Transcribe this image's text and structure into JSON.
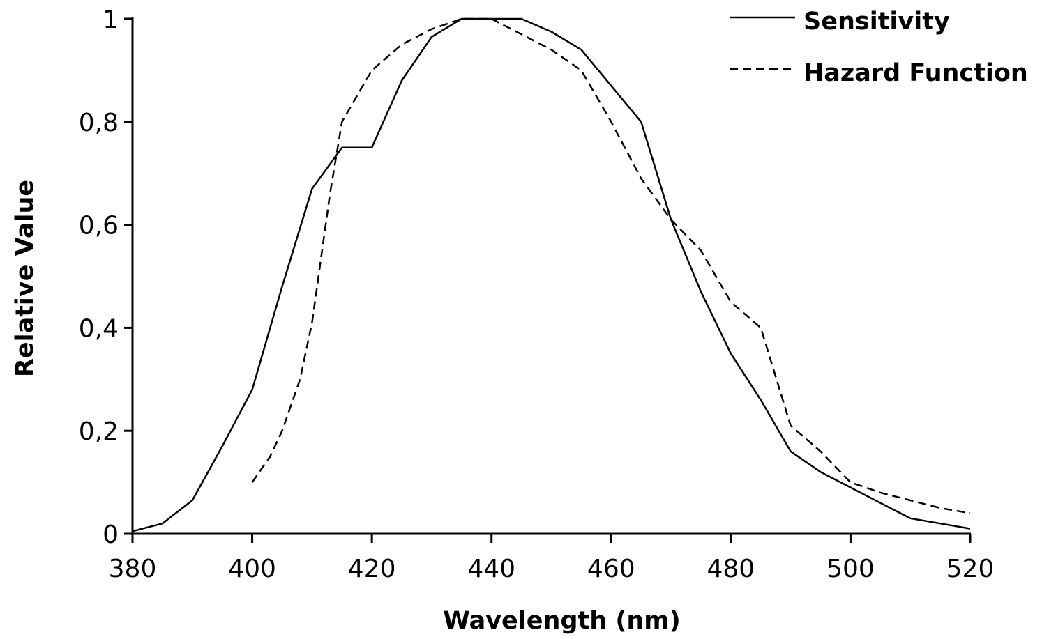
{
  "chart_data": {
    "type": "line",
    "xlabel": "Wavelength (nm)",
    "ylabel": "Relative Value",
    "xlim": [
      380,
      520
    ],
    "ylim": [
      0,
      1
    ],
    "x_ticks": [
      "380",
      "400",
      "420",
      "440",
      "460",
      "480",
      "500",
      "520"
    ],
    "y_ticks": [
      "0",
      "0,2",
      "0,4",
      "0,6",
      "0,8",
      "1"
    ],
    "grid": false,
    "legend_position": "top-right",
    "series": [
      {
        "name": "Sensitivity",
        "style": "solid",
        "color": "#000000",
        "x": [
          380,
          385,
          390,
          395,
          400,
          405,
          410,
          415,
          420,
          425,
          430,
          435,
          440,
          445,
          450,
          455,
          460,
          465,
          470,
          475,
          480,
          485,
          490,
          495,
          500,
          505,
          510,
          515,
          520
        ],
        "y": [
          0.005,
          0.02,
          0.065,
          0.17,
          0.28,
          0.48,
          0.67,
          0.75,
          0.75,
          0.88,
          0.965,
          1.0,
          1.0,
          1.0,
          0.975,
          0.94,
          0.87,
          0.8,
          0.61,
          0.47,
          0.35,
          0.26,
          0.16,
          0.12,
          0.09,
          0.06,
          0.03,
          0.02,
          0.01
        ]
      },
      {
        "name": "Hazard Function",
        "style": "dashed",
        "color": "#000000",
        "x": [
          400,
          403,
          405,
          408,
          410,
          413,
          415,
          417,
          420,
          425,
          430,
          435,
          440,
          445,
          450,
          455,
          460,
          465,
          470,
          475,
          480,
          485,
          490,
          495,
          500,
          505,
          510,
          515,
          520
        ],
        "y": [
          0.1,
          0.15,
          0.2,
          0.3,
          0.41,
          0.66,
          0.8,
          0.84,
          0.9,
          0.95,
          0.98,
          1.0,
          1.0,
          0.97,
          0.94,
          0.9,
          0.8,
          0.69,
          0.61,
          0.55,
          0.45,
          0.4,
          0.21,
          0.16,
          0.1,
          0.08,
          0.065,
          0.05,
          0.04
        ]
      }
    ]
  }
}
